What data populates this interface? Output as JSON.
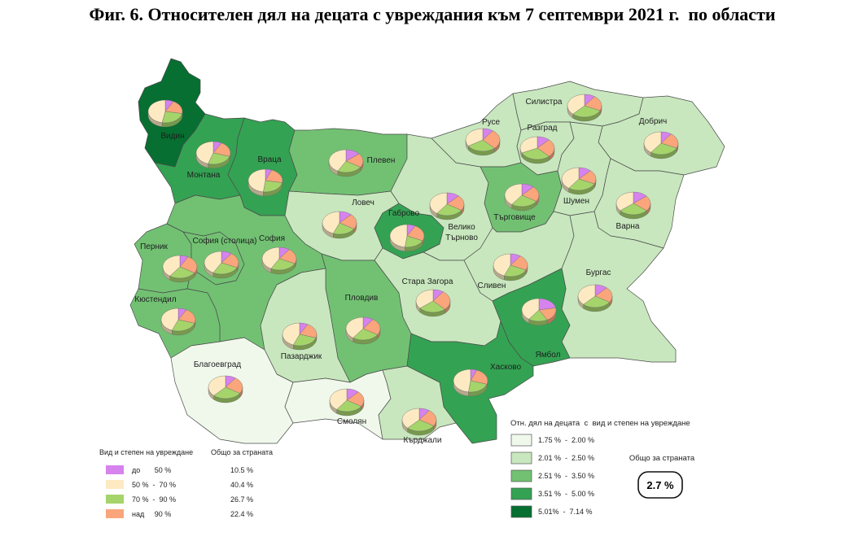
{
  "title": "Фиг. 6. Относителен дял на децата с увреждания към 7 септември 2021 г.  по области",
  "legend_disability": {
    "heading": "Вид и степен на увреждане",
    "total_heading": "Общо за страната",
    "items": [
      {
        "label": "до       50 %",
        "total": "10.5 %",
        "color": "#d683ee"
      },
      {
        "label": "50 %  -  70 %",
        "total": "40.4 %",
        "color": "#fdeac2"
      },
      {
        "label": "70 %  -  90 %",
        "total": "26.7 %",
        "color": "#a5d46b"
      },
      {
        "label": "над     90 %",
        "total": "22.4 %",
        "color": "#faa57b"
      }
    ]
  },
  "legend_share": {
    "heading": "Отн. дял на децата  с  вид и степен на увреждане",
    "classes": [
      {
        "label": "1.75 %  -  2.00 %",
        "color": "#f0f8eb"
      },
      {
        "label": "2.01 %  -  2.50 %",
        "color": "#c8e7be"
      },
      {
        "label": "2.51 %  -  3.50 %",
        "color": "#72c173"
      },
      {
        "label": "3.51 %  -  5.00 %",
        "color": "#34a253"
      },
      {
        "label": "5.01%  -  7.14 %",
        "color": "#066f31"
      }
    ]
  },
  "national_total": {
    "label": "Общо за страната",
    "value": "2.7 %"
  },
  "map": {
    "regions": [
      {
        "label": "Видин",
        "share_class": 5,
        "pie_percent": [
          8,
          47,
          25,
          20
        ]
      },
      {
        "label": "Монтана",
        "share_class": 4,
        "pie_percent": [
          8,
          45,
          25,
          22
        ]
      },
      {
        "label": "Враца",
        "share_class": 4,
        "pie_percent": [
          6,
          48,
          24,
          22
        ]
      },
      {
        "label": "Плевен",
        "share_class": 3,
        "pie_percent": [
          14,
          42,
          24,
          20
        ]
      },
      {
        "label": "Ловеч",
        "share_class": 2,
        "pie_percent": [
          12,
          44,
          22,
          22
        ]
      },
      {
        "label": "Габрово",
        "share_class": 4,
        "pie_percent": [
          8,
          48,
          20,
          24
        ]
      },
      {
        "label": "Велико Търново",
        "share_class": 2,
        "pie_percent": [
          12,
          40,
          26,
          22
        ]
      },
      {
        "label": "Русе",
        "share_class": 2,
        "pie_percent": [
          10,
          34,
          28,
          28
        ]
      },
      {
        "label": "Силистра",
        "share_class": 2,
        "pie_percent": [
          10,
          38,
          30,
          22
        ]
      },
      {
        "label": "Разград",
        "share_class": 2,
        "pie_percent": [
          12,
          32,
          30,
          26
        ]
      },
      {
        "label": "Добрич",
        "share_class": 2,
        "pie_percent": [
          10,
          40,
          28,
          22
        ]
      },
      {
        "label": "Търговище",
        "share_class": 3,
        "pie_percent": [
          12,
          40,
          26,
          22
        ]
      },
      {
        "label": "Шумен",
        "share_class": 2,
        "pie_percent": [
          12,
          40,
          28,
          20
        ]
      },
      {
        "label": "Варна",
        "share_class": 2,
        "pie_percent": [
          14,
          36,
          28,
          22
        ]
      },
      {
        "label": "Перник",
        "share_class": 3,
        "pie_percent": [
          8,
          40,
          26,
          26
        ]
      },
      {
        "label": "София (столица)",
        "share_class": 3,
        "pie_percent": [
          10,
          42,
          26,
          22
        ]
      },
      {
        "label": "София",
        "share_class": 3,
        "pie_percent": [
          10,
          42,
          26,
          22
        ]
      },
      {
        "label": "Кюстендил",
        "share_class": 3,
        "pie_percent": [
          8,
          44,
          26,
          22
        ]
      },
      {
        "label": "Пловдив",
        "share_class": 3,
        "pie_percent": [
          10,
          40,
          26,
          24
        ]
      },
      {
        "label": "Стара Загора",
        "share_class": 2,
        "pie_percent": [
          10,
          36,
          26,
          28
        ]
      },
      {
        "label": "Сливен",
        "share_class": 2,
        "pie_percent": [
          10,
          44,
          24,
          22
        ]
      },
      {
        "label": "Бургас",
        "share_class": 2,
        "pie_percent": [
          12,
          38,
          28,
          22
        ]
      },
      {
        "label": "Ямбол",
        "share_class": 4,
        "pie_percent": [
          22,
          40,
          18,
          20
        ]
      },
      {
        "label": "Пазарджик",
        "share_class": 2,
        "pie_percent": [
          8,
          44,
          26,
          22
        ]
      },
      {
        "label": "Благоевград",
        "share_class": 1,
        "pie_percent": [
          10,
          38,
          28,
          24
        ]
      },
      {
        "label": "Смолян",
        "share_class": 1,
        "pie_percent": [
          12,
          40,
          26,
          22
        ]
      },
      {
        "label": "Хасково",
        "share_class": 4,
        "pie_percent": [
          6,
          48,
          22,
          24
        ]
      },
      {
        "label": "Кърджали",
        "share_class": 2,
        "pie_percent": [
          10,
          38,
          28,
          24
        ]
      }
    ]
  }
}
